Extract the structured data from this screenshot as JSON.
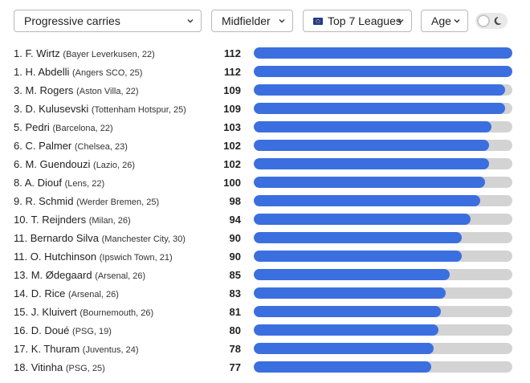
{
  "filters": {
    "metric": "Progressive carries",
    "position": "Midfielder",
    "league": "Top 7 Leagues",
    "age": "Age"
  },
  "colors": {
    "bar_fill": "#3b6fe0",
    "bar_track": "#d3d3d3"
  },
  "max_value": 112,
  "players": [
    {
      "rank": "1.",
      "name": "F. Wirtz",
      "team": "(Bayer Leverkusen, 22)",
      "value": 112
    },
    {
      "rank": "1.",
      "name": "H. Abdelli",
      "team": "(Angers SCO, 25)",
      "value": 112
    },
    {
      "rank": "3.",
      "name": "M. Rogers",
      "team": "(Aston Villa, 22)",
      "value": 109
    },
    {
      "rank": "3.",
      "name": "D. Kulusevski",
      "team": "(Tottenham Hotspur, 25)",
      "value": 109
    },
    {
      "rank": "5.",
      "name": "Pedri",
      "team": "(Barcelona, 22)",
      "value": 103
    },
    {
      "rank": "6.",
      "name": "C. Palmer",
      "team": "(Chelsea, 23)",
      "value": 102
    },
    {
      "rank": "6.",
      "name": "M. Guendouzi",
      "team": "(Lazio, 26)",
      "value": 102
    },
    {
      "rank": "8.",
      "name": "A. Diouf",
      "team": "(Lens, 22)",
      "value": 100
    },
    {
      "rank": "9.",
      "name": "R. Schmid",
      "team": "(Werder Bremen, 25)",
      "value": 98
    },
    {
      "rank": "10.",
      "name": "T. Reijnders",
      "team": "(Milan, 26)",
      "value": 94
    },
    {
      "rank": "11.",
      "name": "Bernardo Silva",
      "team": "(Manchester City, 30)",
      "value": 90
    },
    {
      "rank": "11.",
      "name": "O. Hutchinson",
      "team": "(Ipswich Town, 21)",
      "value": 90
    },
    {
      "rank": "13.",
      "name": "M. Ødegaard",
      "team": "(Arsenal, 26)",
      "value": 85
    },
    {
      "rank": "14.",
      "name": "D. Rice",
      "team": "(Arsenal, 26)",
      "value": 83
    },
    {
      "rank": "15.",
      "name": "J. Kluivert",
      "team": "(Bournemouth, 26)",
      "value": 81
    },
    {
      "rank": "16.",
      "name": "D. Doué",
      "team": "(PSG, 19)",
      "value": 80
    },
    {
      "rank": "17.",
      "name": "K. Thuram",
      "team": "(Juventus, 24)",
      "value": 78
    },
    {
      "rank": "18.",
      "name": "Vitinha",
      "team": "(PSG, 25)",
      "value": 77
    }
  ]
}
